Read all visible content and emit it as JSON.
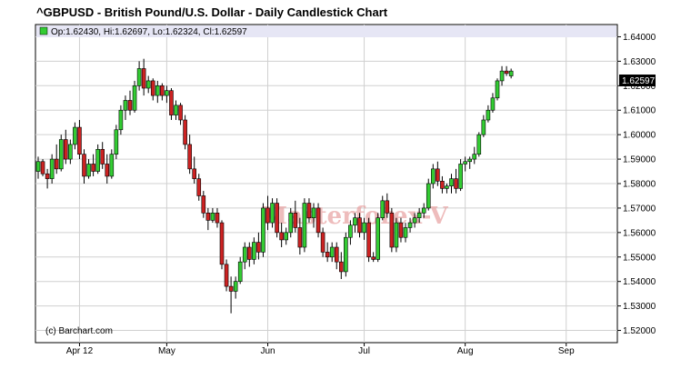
{
  "chart_data": {
    "type": "candlestick",
    "title": "^GBPUSD - British Pound/U.S. Dollar - Daily Candlestick Chart",
    "ohlc_label": "Op:1.62430, Hi:1.62697, Lo:1.62324, Cl:1.62597",
    "last_price": "1.62597",
    "credit": "(c) Barchart.com",
    "watermark": "Masterforex-V",
    "ylim": [
      1.515,
      1.645
    ],
    "y_ticks": [
      1.52,
      1.53,
      1.54,
      1.55,
      1.56,
      1.57,
      1.58,
      1.59,
      1.6,
      1.61,
      1.62,
      1.63,
      1.64
    ],
    "y_tick_labels": [
      "1.52000",
      "1.53000",
      "1.54000",
      "1.55000",
      "1.56000",
      "1.57000",
      "1.58000",
      "1.59000",
      "1.60000",
      "1.61000",
      "1.62000",
      "1.63000",
      "1.64000"
    ],
    "x_labels": [
      {
        "label": "Apr 12",
        "index": 9
      },
      {
        "label": "May",
        "index": 28
      },
      {
        "label": "Jun",
        "index": 50
      },
      {
        "label": "Jul",
        "index": 71
      },
      {
        "label": "Aug",
        "index": 93
      },
      {
        "label": "Sep",
        "index": 115
      }
    ],
    "colors": {
      "up": "#33cc33",
      "down": "#cc2222",
      "grid": "#d0d0d0",
      "ohlc_bar": "#e6e6f5",
      "watermark": "#e8a0a0"
    },
    "candles": [
      [
        1.585,
        1.591,
        1.582,
        1.589
      ],
      [
        1.589,
        1.59,
        1.583,
        1.584
      ],
      [
        1.584,
        1.586,
        1.578,
        1.582
      ],
      [
        1.582,
        1.592,
        1.58,
        1.59
      ],
      [
        1.59,
        1.596,
        1.584,
        1.586
      ],
      [
        1.586,
        1.6,
        1.585,
        1.598
      ],
      [
        1.598,
        1.602,
        1.588,
        1.59
      ],
      [
        1.59,
        1.598,
        1.588,
        1.596
      ],
      [
        1.596,
        1.605,
        1.594,
        1.603
      ],
      [
        1.603,
        1.606,
        1.59,
        1.592
      ],
      [
        1.592,
        1.594,
        1.58,
        1.583
      ],
      [
        1.583,
        1.59,
        1.582,
        1.588
      ],
      [
        1.588,
        1.592,
        1.583,
        1.585
      ],
      [
        1.585,
        1.596,
        1.584,
        1.594
      ],
      [
        1.594,
        1.597,
        1.586,
        1.588
      ],
      [
        1.588,
        1.592,
        1.58,
        1.583
      ],
      [
        1.583,
        1.594,
        1.582,
        1.592
      ],
      [
        1.592,
        1.604,
        1.59,
        1.602
      ],
      [
        1.602,
        1.612,
        1.6,
        1.61
      ],
      [
        1.61,
        1.616,
        1.606,
        1.614
      ],
      [
        1.614,
        1.618,
        1.608,
        1.61
      ],
      [
        1.61,
        1.622,
        1.609,
        1.62
      ],
      [
        1.62,
        1.63,
        1.618,
        1.627
      ],
      [
        1.627,
        1.631,
        1.616,
        1.619
      ],
      [
        1.619,
        1.624,
        1.617,
        1.622
      ],
      [
        1.622,
        1.623,
        1.614,
        1.616
      ],
      [
        1.616,
        1.622,
        1.613,
        1.62
      ],
      [
        1.62,
        1.621,
        1.614,
        1.616
      ],
      [
        1.616,
        1.62,
        1.613,
        1.618
      ],
      [
        1.618,
        1.619,
        1.606,
        1.608
      ],
      [
        1.608,
        1.614,
        1.606,
        1.612
      ],
      [
        1.612,
        1.613,
        1.604,
        1.606
      ],
      [
        1.606,
        1.608,
        1.594,
        1.596
      ],
      [
        1.596,
        1.6,
        1.584,
        1.586
      ],
      [
        1.586,
        1.591,
        1.58,
        1.582
      ],
      [
        1.582,
        1.584,
        1.573,
        1.575
      ],
      [
        1.575,
        1.577,
        1.566,
        1.568
      ],
      [
        1.568,
        1.57,
        1.561,
        1.565
      ],
      [
        1.565,
        1.57,
        1.564,
        1.568
      ],
      [
        1.568,
        1.57,
        1.562,
        1.564
      ],
      [
        1.564,
        1.565,
        1.545,
        1.547
      ],
      [
        1.547,
        1.549,
        1.536,
        1.538
      ],
      [
        1.538,
        1.542,
        1.527,
        1.536
      ],
      [
        1.536,
        1.542,
        1.533,
        1.54
      ],
      [
        1.54,
        1.55,
        1.539,
        1.548
      ],
      [
        1.548,
        1.556,
        1.545,
        1.554
      ],
      [
        1.554,
        1.556,
        1.546,
        1.549
      ],
      [
        1.549,
        1.558,
        1.547,
        1.556
      ],
      [
        1.556,
        1.56,
        1.549,
        1.552
      ],
      [
        1.552,
        1.572,
        1.55,
        1.57
      ],
      [
        1.57,
        1.575,
        1.561,
        1.564
      ],
      [
        1.564,
        1.574,
        1.562,
        1.572
      ],
      [
        1.572,
        1.574,
        1.558,
        1.56
      ],
      [
        1.56,
        1.564,
        1.554,
        1.557
      ],
      [
        1.557,
        1.562,
        1.555,
        1.56
      ],
      [
        1.56,
        1.57,
        1.558,
        1.568
      ],
      [
        1.568,
        1.573,
        1.56,
        1.562
      ],
      [
        1.562,
        1.566,
        1.551,
        1.554
      ],
      [
        1.554,
        1.574,
        1.552,
        1.572
      ],
      [
        1.572,
        1.574,
        1.564,
        1.566
      ],
      [
        1.566,
        1.572,
        1.562,
        1.57
      ],
      [
        1.57,
        1.572,
        1.558,
        1.56
      ],
      [
        1.56,
        1.562,
        1.55,
        1.552
      ],
      [
        1.552,
        1.556,
        1.548,
        1.55
      ],
      [
        1.55,
        1.556,
        1.548,
        1.554
      ],
      [
        1.554,
        1.556,
        1.545,
        1.548
      ],
      [
        1.548,
        1.552,
        1.541,
        1.544
      ],
      [
        1.544,
        1.56,
        1.542,
        1.558
      ],
      [
        1.558,
        1.565,
        1.555,
        1.563
      ],
      [
        1.563,
        1.568,
        1.56,
        1.566
      ],
      [
        1.566,
        1.568,
        1.558,
        1.56
      ],
      [
        1.56,
        1.566,
        1.557,
        1.564
      ],
      [
        1.564,
        1.566,
        1.548,
        1.55
      ],
      [
        1.55,
        1.552,
        1.548,
        1.549
      ],
      [
        1.549,
        1.568,
        1.548,
        1.566
      ],
      [
        1.566,
        1.575,
        1.565,
        1.573
      ],
      [
        1.573,
        1.576,
        1.566,
        1.568
      ],
      [
        1.568,
        1.57,
        1.552,
        1.554
      ],
      [
        1.554,
        1.566,
        1.552,
        1.564
      ],
      [
        1.564,
        1.566,
        1.556,
        1.558
      ],
      [
        1.558,
        1.564,
        1.556,
        1.562
      ],
      [
        1.562,
        1.566,
        1.56,
        1.564
      ],
      [
        1.564,
        1.568,
        1.562,
        1.566
      ],
      [
        1.566,
        1.57,
        1.564,
        1.568
      ],
      [
        1.568,
        1.572,
        1.566,
        1.57
      ],
      [
        1.57,
        1.582,
        1.569,
        1.58
      ],
      [
        1.58,
        1.588,
        1.578,
        1.586
      ],
      [
        1.586,
        1.589,
        1.579,
        1.581
      ],
      [
        1.581,
        1.583,
        1.576,
        1.578
      ],
      [
        1.578,
        1.58,
        1.576,
        1.579
      ],
      [
        1.579,
        1.584,
        1.576,
        1.582
      ],
      [
        1.582,
        1.586,
        1.576,
        1.578
      ],
      [
        1.578,
        1.59,
        1.577,
        1.588
      ],
      [
        1.588,
        1.591,
        1.585,
        1.589
      ],
      [
        1.589,
        1.591,
        1.586,
        1.59
      ],
      [
        1.59,
        1.595,
        1.588,
        1.592
      ],
      [
        1.592,
        1.601,
        1.591,
        1.6
      ],
      [
        1.6,
        1.608,
        1.599,
        1.606
      ],
      [
        1.606,
        1.612,
        1.605,
        1.61
      ],
      [
        1.61,
        1.617,
        1.609,
        1.615
      ],
      [
        1.615,
        1.623,
        1.614,
        1.622
      ],
      [
        1.622,
        1.628,
        1.62,
        1.626
      ],
      [
        1.626,
        1.628,
        1.624,
        1.625
      ],
      [
        1.624,
        1.627,
        1.623,
        1.626
      ]
    ]
  }
}
